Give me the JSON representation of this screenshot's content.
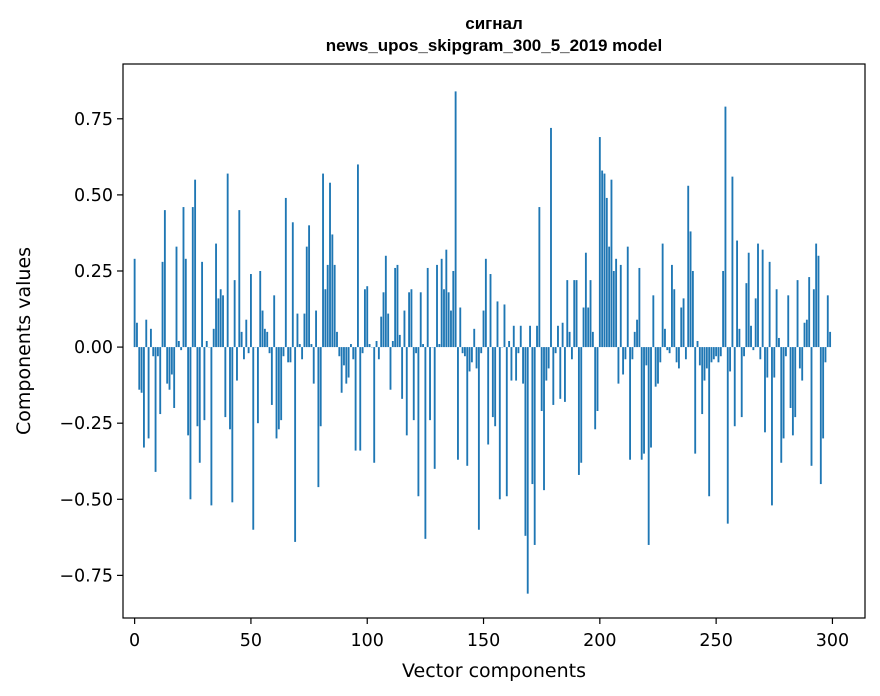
{
  "chart_data": {
    "type": "bar",
    "title_lines": [
      "сигнал",
      "news_upos_skipgram_300_5_2019 model"
    ],
    "xlabel": "Vector components",
    "ylabel": "Components values",
    "xlim": [
      -5,
      314
    ],
    "ylim": [
      -0.89,
      0.93
    ],
    "x_ticks": [
      0,
      50,
      100,
      150,
      200,
      250,
      300
    ],
    "x_tick_labels": [
      "0",
      "50",
      "100",
      "150",
      "200",
      "250",
      "300"
    ],
    "y_ticks": [
      0.75,
      0.5,
      0.25,
      0.0,
      -0.25,
      -0.5,
      -0.75
    ],
    "y_tick_labels": [
      "0.75",
      "0.50",
      "0.25",
      "0.00",
      "−0.25",
      "−0.50",
      "−0.75"
    ],
    "bar_color": "#1f77b4",
    "grid": false,
    "x": "0..299 (component index)",
    "values": [
      0.29,
      0.08,
      -0.14,
      -0.15,
      -0.33,
      0.09,
      -0.3,
      0.06,
      -0.03,
      -0.41,
      -0.03,
      -0.22,
      0.28,
      0.45,
      -0.12,
      -0.14,
      -0.09,
      -0.2,
      0.33,
      0.02,
      -0.01,
      0.46,
      0.29,
      -0.29,
      -0.5,
      0.46,
      0.55,
      -0.26,
      -0.38,
      0.28,
      -0.24,
      0.02,
      0.0,
      -0.52,
      0.06,
      0.34,
      0.16,
      0.19,
      0.17,
      -0.23,
      0.57,
      -0.27,
      -0.51,
      0.22,
      -0.11,
      0.45,
      0.05,
      -0.04,
      0.09,
      -0.02,
      0.24,
      -0.6,
      0.0,
      -0.25,
      0.25,
      0.12,
      0.06,
      0.05,
      -0.02,
      -0.19,
      0.17,
      -0.3,
      -0.27,
      -0.24,
      -0.03,
      0.49,
      -0.05,
      -0.05,
      0.41,
      -0.64,
      0.11,
      0.01,
      -0.04,
      0.11,
      0.33,
      0.4,
      0.01,
      -0.12,
      0.12,
      -0.46,
      -0.26,
      0.57,
      0.19,
      0.27,
      0.54,
      0.37,
      0.27,
      0.05,
      -0.03,
      -0.15,
      -0.06,
      -0.12,
      -0.1,
      0.01,
      -0.04,
      -0.34,
      0.6,
      -0.34,
      -0.02,
      0.19,
      0.2,
      0.01,
      0.0,
      -0.38,
      0.02,
      -0.04,
      0.1,
      0.18,
      0.3,
      0.11,
      -0.14,
      0.02,
      0.26,
      0.27,
      0.04,
      -0.17,
      0.12,
      -0.29,
      0.18,
      0.19,
      -0.24,
      -0.02,
      -0.49,
      0.18,
      0.01,
      -0.63,
      0.26,
      -0.24,
      0.0,
      -0.4,
      0.27,
      0.01,
      0.29,
      0.19,
      0.32,
      0.18,
      0.12,
      0.25,
      0.84,
      -0.37,
      0.13,
      -0.02,
      -0.03,
      -0.39,
      -0.08,
      -0.05,
      0.06,
      -0.07,
      -0.6,
      -0.02,
      0.12,
      0.29,
      -0.32,
      0.24,
      -0.23,
      -0.26,
      0.15,
      -0.5,
      0.0,
      0.14,
      -0.49,
      0.02,
      -0.11,
      0.07,
      -0.11,
      -0.02,
      0.07,
      -0.12,
      -0.62,
      -0.81,
      0.07,
      -0.45,
      -0.65,
      0.07,
      0.46,
      -0.21,
      -0.47,
      -0.11,
      -0.07,
      0.72,
      -0.19,
      -0.02,
      0.07,
      -0.17,
      0.08,
      -0.18,
      0.22,
      0.05,
      -0.04,
      0.22,
      0.22,
      -0.42,
      -0.38,
      0.13,
      0.31,
      0.13,
      0.22,
      0.05,
      -0.27,
      -0.21,
      0.69,
      0.58,
      0.57,
      0.49,
      0.33,
      0.55,
      0.25,
      0.29,
      -0.12,
      0.27,
      -0.09,
      -0.04,
      0.33,
      -0.37,
      -0.04,
      0.05,
      0.09,
      0.26,
      -0.37,
      -0.35,
      -0.06,
      -0.65,
      -0.33,
      0.17,
      -0.13,
      -0.12,
      -0.05,
      0.34,
      0.06,
      -0.01,
      -0.02,
      0.27,
      0.19,
      -0.05,
      -0.07,
      0.13,
      0.16,
      -0.04,
      0.53,
      0.38,
      0.25,
      -0.35,
      0.02,
      -0.06,
      -0.22,
      -0.11,
      -0.07,
      -0.49,
      -0.05,
      -0.04,
      -0.03,
      -0.05,
      -0.03,
      0.25,
      0.79,
      -0.58,
      -0.08,
      0.56,
      -0.26,
      0.35,
      0.06,
      -0.23,
      -0.03,
      0.21,
      0.31,
      0.07,
      -0.01,
      0.16,
      0.34,
      -0.04,
      0.32,
      -0.28,
      -0.1,
      0.28,
      -0.52,
      -0.1,
      0.19,
      0.03,
      -0.38,
      -0.3,
      -0.03,
      0.17,
      -0.2,
      -0.29,
      -0.23,
      0.22,
      -0.07,
      -0.11,
      0.08,
      0.09,
      0.23,
      -0.39,
      0.19,
      0.34,
      0.3,
      -0.45,
      -0.3,
      -0.05,
      0.17,
      0.05
    ]
  }
}
